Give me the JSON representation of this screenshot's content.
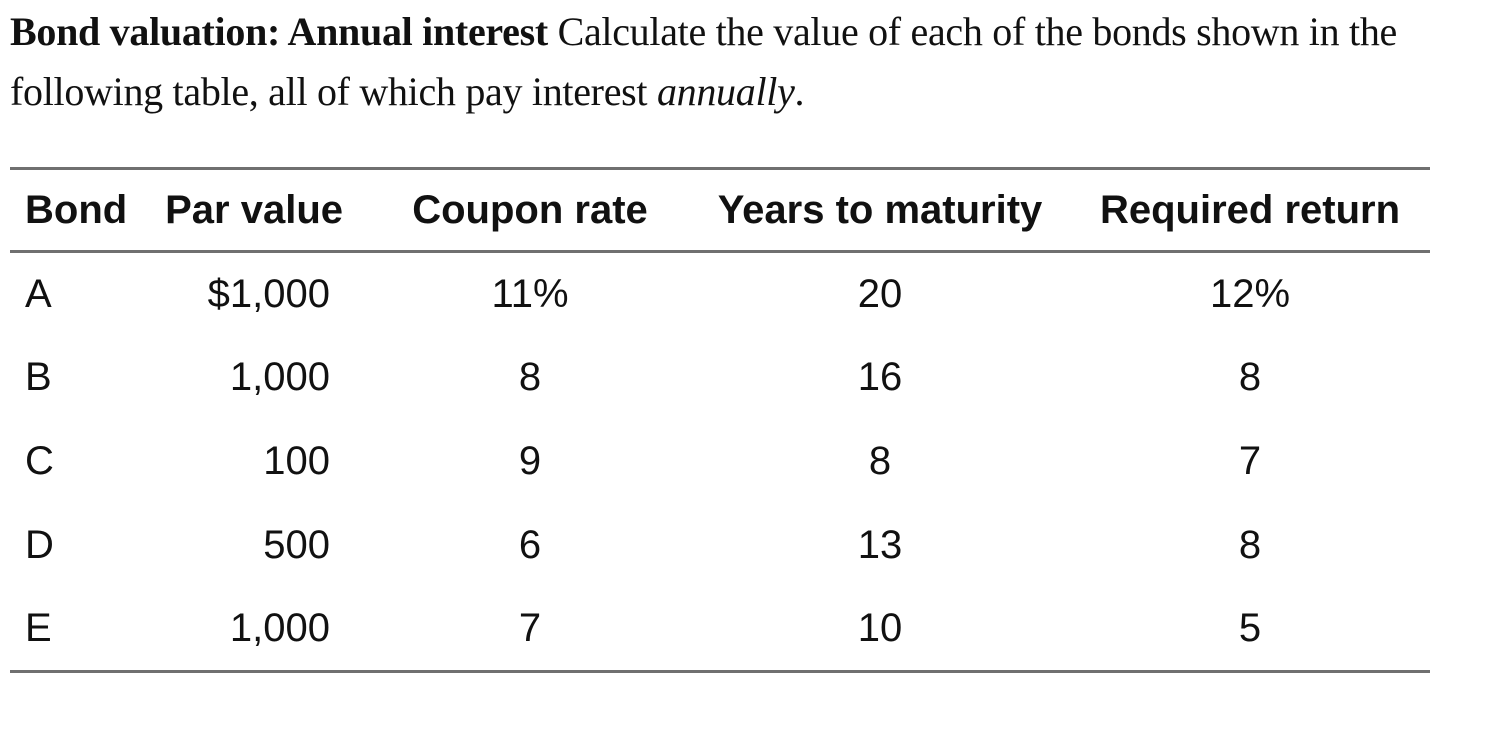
{
  "problem": {
    "title_bold": "Bond valuation: Annual interest",
    "text_before_italic": " Calculate the value of each of the bonds shown in the following table, all of which pay interest ",
    "italic_word": "annually",
    "text_after_italic": "."
  },
  "table": {
    "columns": [
      "Bond",
      "Par value",
      "Coupon rate",
      "Years to maturity",
      "Required return"
    ],
    "rows": [
      {
        "bond": "A",
        "par_value": "$1,000",
        "coupon_rate": "11%",
        "years_to_maturity": "20",
        "required_return": "12%"
      },
      {
        "bond": "B",
        "par_value": "1,000",
        "coupon_rate": "8",
        "years_to_maturity": "16",
        "required_return": "8"
      },
      {
        "bond": "C",
        "par_value": "100",
        "coupon_rate": "9",
        "years_to_maturity": "8",
        "required_return": "7"
      },
      {
        "bond": "D",
        "par_value": "500",
        "coupon_rate": "6",
        "years_to_maturity": "13",
        "required_return": "8"
      },
      {
        "bond": "E",
        "par_value": "1,000",
        "coupon_rate": "7",
        "years_to_maturity": "10",
        "required_return": "5"
      }
    ]
  },
  "colors": {
    "text": "#111111",
    "rule": "#707070",
    "background": "#ffffff"
  }
}
